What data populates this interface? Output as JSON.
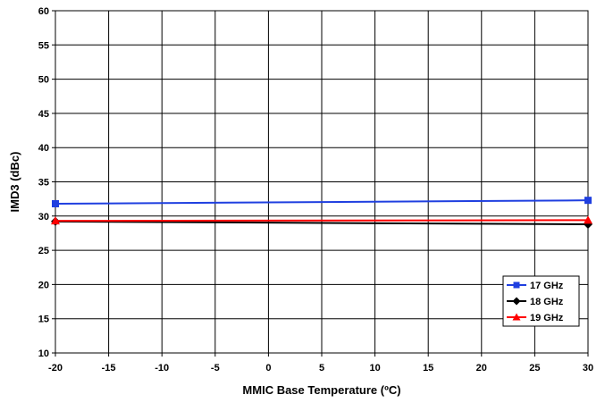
{
  "chart_data": {
    "type": "line",
    "xlabel": "MMIC Base Temperature (ºC)",
    "ylabel": "IMD3 (dBc)",
    "xlim": [
      -20,
      30
    ],
    "ylim": [
      10,
      60
    ],
    "x_ticks": [
      -20,
      -15,
      -10,
      -5,
      0,
      5,
      10,
      15,
      20,
      25,
      30
    ],
    "y_ticks": [
      10,
      15,
      20,
      25,
      30,
      35,
      40,
      45,
      50,
      55,
      60
    ],
    "grid": true,
    "legend_position": "bottom-right",
    "series": [
      {
        "name": "17 GHz",
        "color": "#1f3fe0",
        "marker": "square",
        "x": [
          -20,
          30
        ],
        "y": [
          31.8,
          32.3
        ]
      },
      {
        "name": "18 GHz",
        "color": "#000000",
        "marker": "diamond",
        "x": [
          -20,
          30
        ],
        "y": [
          29.2,
          28.8
        ]
      },
      {
        "name": "19 GHz",
        "color": "#ff0000",
        "marker": "triangle",
        "x": [
          -20,
          30
        ],
        "y": [
          29.3,
          29.4
        ]
      }
    ]
  }
}
